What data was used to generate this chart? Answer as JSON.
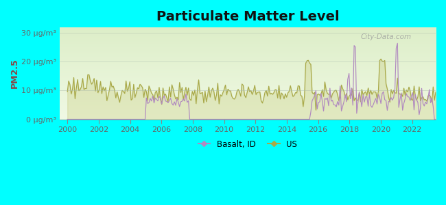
{
  "title": "Particulate Matter Level",
  "ylabel": "PM2.5",
  "ylim": [
    0,
    32
  ],
  "yticks": [
    0,
    10,
    20,
    30
  ],
  "ytick_labels": [
    "0 μg/m³",
    "10 μg/m³",
    "20 μg/m³",
    "30 μg/m³"
  ],
  "xlim": [
    1999.5,
    2023.5
  ],
  "xticks": [
    2000,
    2002,
    2004,
    2006,
    2008,
    2010,
    2012,
    2014,
    2016,
    2018,
    2020,
    2022
  ],
  "background_outer": "#00FFFF",
  "background_plot": "#eef5dc",
  "color_basalt": "#b088c0",
  "color_us": "#a8a848",
  "color_us_fill": "#c8cc88",
  "legend_basalt": "Basalt, ID",
  "legend_us": "US",
  "watermark": "City-Data.com",
  "title_fontsize": 14,
  "ylabel_fontsize": 9,
  "tick_fontsize": 8,
  "ylabel_color": "#884444"
}
